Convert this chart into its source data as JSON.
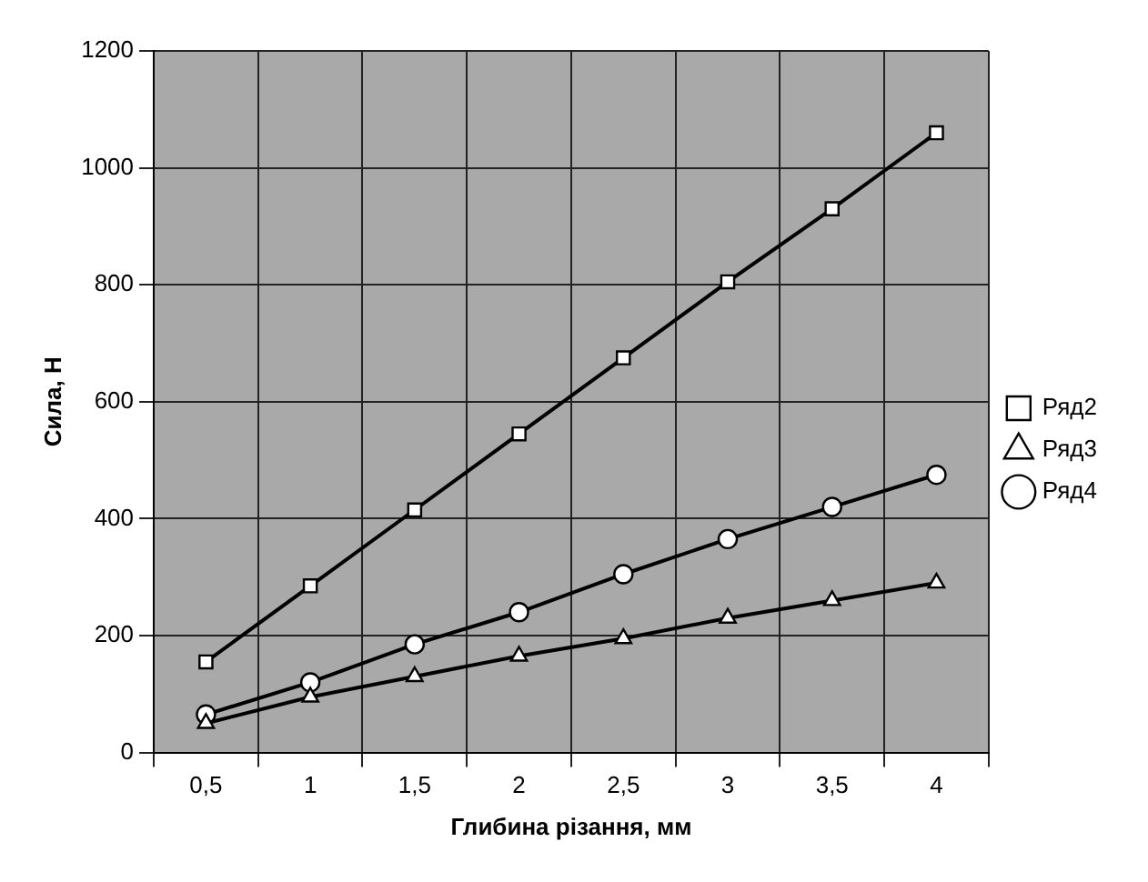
{
  "chart_data": {
    "type": "line",
    "xlabel": "Глибина різання, мм",
    "ylabel": "Сила, Н",
    "categories": [
      "0,5",
      "1",
      "1,5",
      "2",
      "2,5",
      "3",
      "3,5",
      "4"
    ],
    "series": [
      {
        "name": "Ряд2",
        "color": "#000000",
        "marker": "square",
        "values": [
          155,
          285,
          415,
          545,
          675,
          805,
          930,
          1060
        ]
      },
      {
        "name": "Ряд3",
        "color": "#000000",
        "marker": "triangle",
        "values": [
          50,
          95,
          130,
          165,
          195,
          230,
          260,
          290
        ]
      },
      {
        "name": "Ряд4",
        "color": "#000000",
        "marker": "circle",
        "values": [
          65,
          120,
          185,
          240,
          305,
          365,
          420,
          475
        ]
      }
    ],
    "ylim": [
      0,
      1200
    ],
    "yticks": [
      0,
      200,
      400,
      600,
      800,
      1000,
      1200
    ],
    "grid": true,
    "legend": "right"
  }
}
